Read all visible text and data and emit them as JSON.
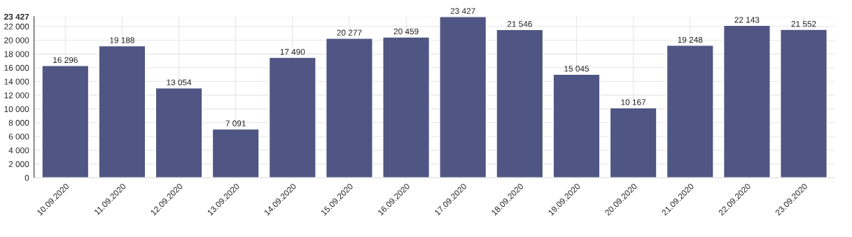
{
  "chart_data": {
    "type": "bar",
    "categories": [
      "10.09.2020",
      "11.09.2020",
      "12.09.2020",
      "13.09.2020",
      "14.09.2020",
      "15.09.2020",
      "16.09.2020",
      "17.09.2020",
      "18.09.2020",
      "19.09.2020",
      "20.09.2020",
      "21.09.2020",
      "22.09.2020",
      "23.09.2020"
    ],
    "values": [
      16296,
      19188,
      13054,
      7091,
      17490,
      20277,
      20459,
      23427,
      21546,
      15045,
      10167,
      19248,
      22143,
      21552
    ],
    "value_labels": [
      "16 296",
      "19 188",
      "13 054",
      "7 091",
      "17 490",
      "20 277",
      "20 459",
      "23 427",
      "21 546",
      "15 045",
      "10 167",
      "19 248",
      "22 143",
      "21 552"
    ],
    "color": "#4f5683",
    "ylim": [
      0,
      23427
    ],
    "yticks": [
      0,
      {
        "value": 2000,
        "label": "2 000"
      },
      {
        "value": 4000,
        "label": "4 000"
      },
      {
        "value": 6000,
        "label": "6 000"
      },
      {
        "value": 8000,
        "label": "8 000"
      },
      {
        "value": 10000,
        "label": "10 000"
      },
      {
        "value": 12000,
        "label": "12 000"
      },
      {
        "value": 14000,
        "label": "14 000"
      },
      {
        "value": 16000,
        "label": "16 000"
      },
      {
        "value": 18000,
        "label": "18 000"
      },
      {
        "value": 20000,
        "label": "20 000"
      },
      {
        "value": 22000,
        "label": "22 000"
      },
      {
        "value": 23427,
        "label": "23 427"
      }
    ],
    "grid": true
  }
}
